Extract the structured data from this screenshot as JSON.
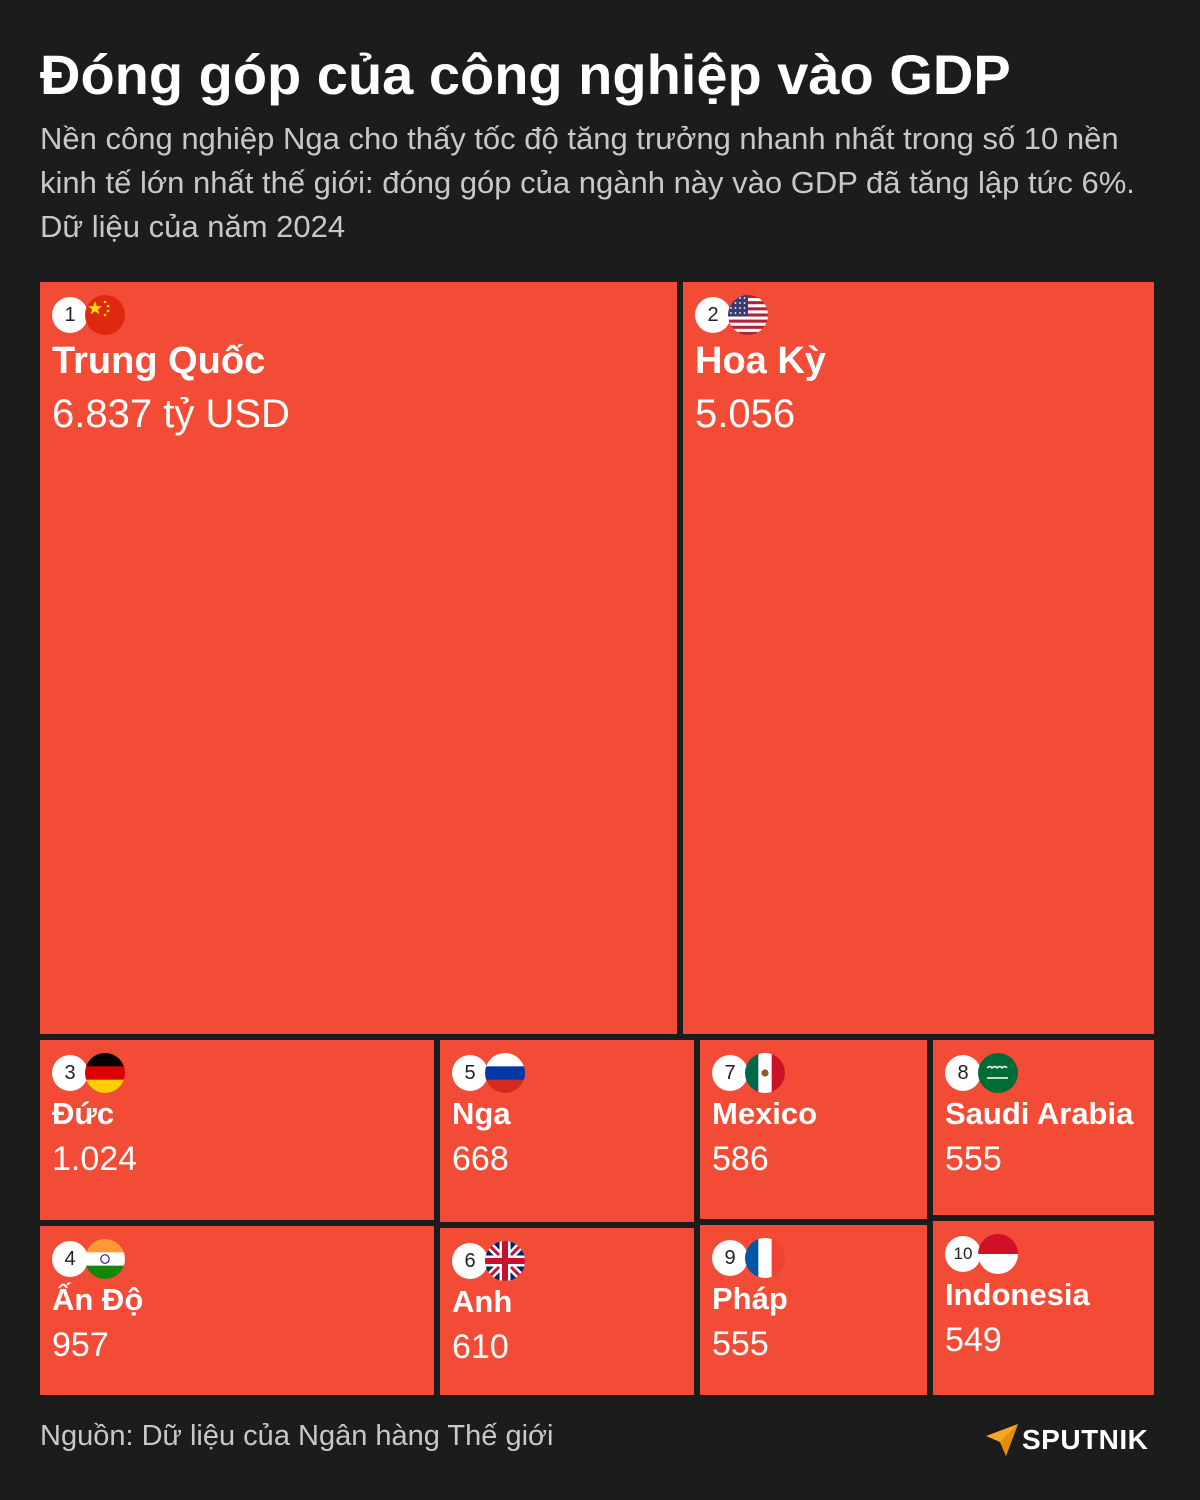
{
  "header": {
    "title": "Đóng góp của công nghiệp vào GDP",
    "subtitle": "Nền công nghiệp Nga cho thấy tốc độ tăng trưởng nhanh nhất trong số 10 nền kinh tế lớn nhất thế giới: đóng góp của ngành này vào GDP đã tăng lập tức 6%. Dữ liệu của năm 2024"
  },
  "chart_data": {
    "type": "treemap",
    "title": "Đóng góp của công nghiệp vào GDP",
    "unit": "tỷ USD",
    "series": [
      {
        "rank": "1",
        "name": "Trung Quốc",
        "value": 6837,
        "label": "6.837 tỷ USD",
        "flag": "china-flag-icon"
      },
      {
        "rank": "2",
        "name": "Hoa Kỳ",
        "value": 5056,
        "label": "5.056",
        "flag": "usa-flag-icon"
      },
      {
        "rank": "3",
        "name": "Đức",
        "value": 1024,
        "label": "1.024",
        "flag": "germany-flag-icon"
      },
      {
        "rank": "4",
        "name": "Ấn Độ",
        "value": 957,
        "label": "957",
        "flag": "india-flag-icon"
      },
      {
        "rank": "5",
        "name": "Nga",
        "value": 668,
        "label": "668",
        "flag": "russia-flag-icon"
      },
      {
        "rank": "6",
        "name": "Anh",
        "value": 610,
        "label": "610",
        "flag": "uk-flag-icon"
      },
      {
        "rank": "7",
        "name": "Mexico",
        "value": 586,
        "label": "586",
        "flag": "mexico-flag-icon"
      },
      {
        "rank": "8",
        "name": "Saudi Arabia",
        "value": 555,
        "label": "555",
        "flag": "saudi-arabia-flag-icon"
      },
      {
        "rank": "9",
        "name": "Pháp",
        "value": 555,
        "label": "555",
        "flag": "france-flag-icon"
      },
      {
        "rank": "10",
        "name": "Indonesia",
        "value": 549,
        "label": "549",
        "flag": "indonesia-flag-icon"
      }
    ],
    "tile_color": "#f24b36"
  },
  "footer": {
    "source": "Nguồn: Dữ liệu của Ngân hàng Thế giới",
    "logo_text": "SPUTNIK",
    "logo_color": "#f5a623"
  }
}
